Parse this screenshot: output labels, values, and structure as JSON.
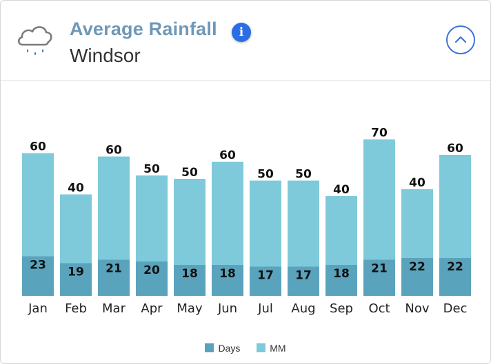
{
  "header": {
    "title": "Average Rainfall",
    "location": "Windsor",
    "icon": "rain-cloud-icon",
    "info_glyph": "i"
  },
  "colors": {
    "days": "#5aa3bd",
    "mm": "#7ecadb",
    "title": "#6f98b8",
    "accent": "#2b6de3"
  },
  "legend": {
    "days_label": "Days",
    "mm_label": "MM"
  },
  "chart_data": {
    "type": "bar",
    "stacked": true,
    "categories": [
      "Jan",
      "Feb",
      "Mar",
      "Apr",
      "May",
      "Jun",
      "Jul",
      "Aug",
      "Sep",
      "Oct",
      "Nov",
      "Dec"
    ],
    "series": [
      {
        "name": "Days",
        "values": [
          23,
          19,
          21,
          20,
          18,
          18,
          17,
          17,
          18,
          21,
          22,
          22
        ]
      },
      {
        "name": "MM",
        "values": [
          60,
          40,
          60,
          50,
          50,
          60,
          50,
          50,
          40,
          70,
          40,
          60
        ]
      }
    ],
    "title": "Average Rainfall",
    "subtitle": "Windsor",
    "xlabel": "",
    "ylabel": "",
    "legend_position": "bottom-center",
    "grid": false
  }
}
